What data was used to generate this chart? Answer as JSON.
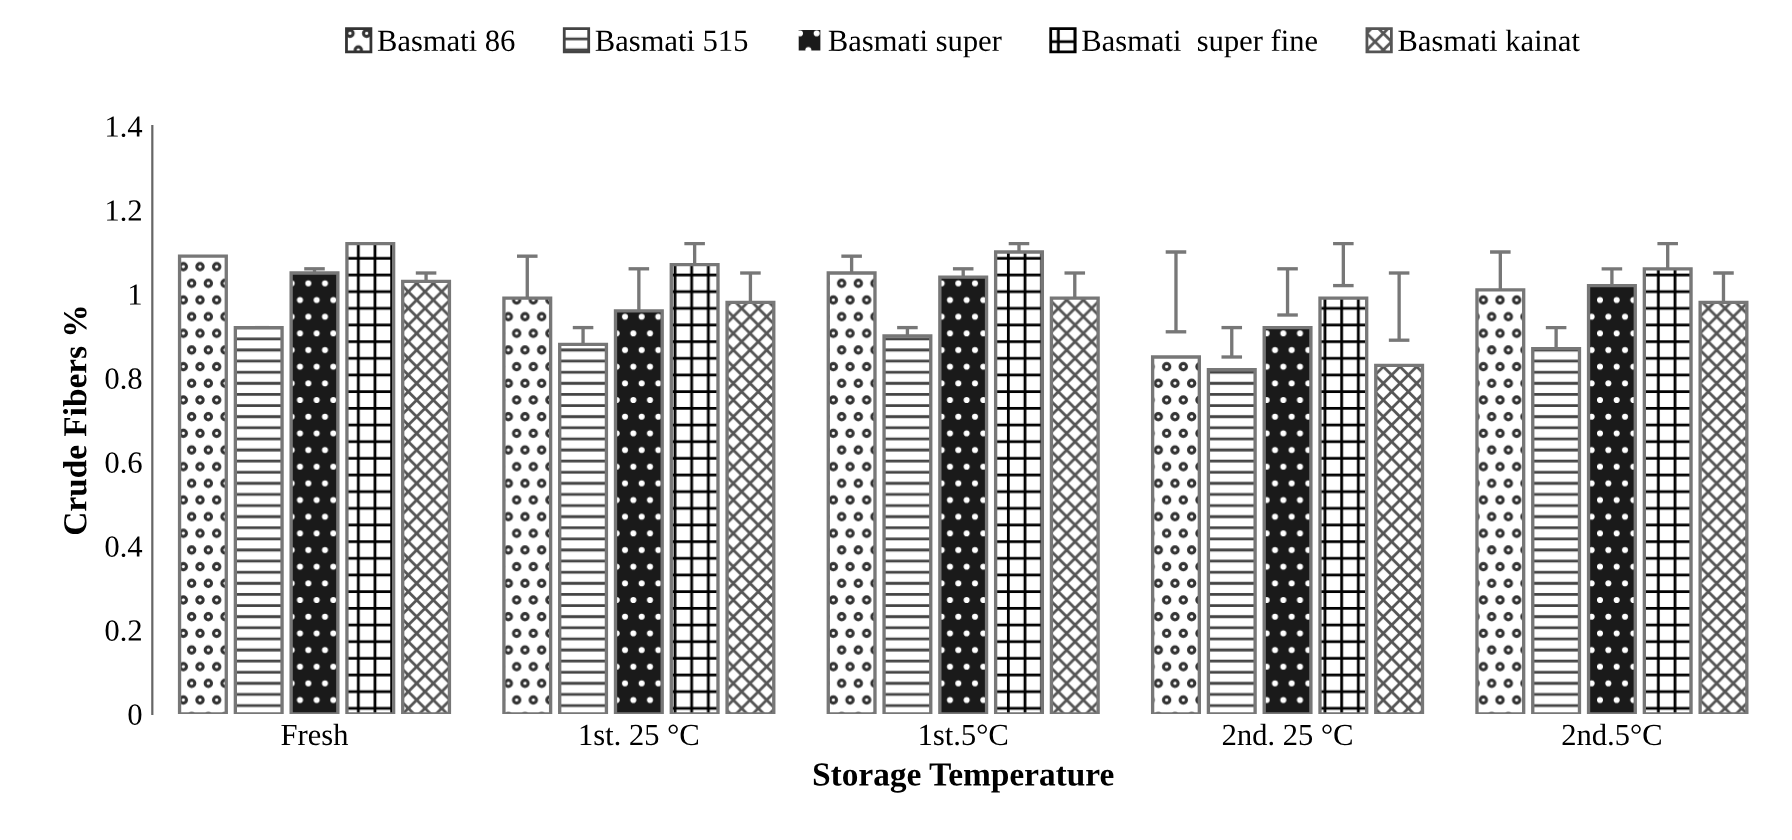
{
  "chart_data": {
    "type": "bar",
    "xlabel": "Storage Temperature",
    "ylabel": "Crude Fibers %",
    "categories": [
      "Fresh",
      "1st. 25 °C",
      "1st.5°C",
      "2nd. 25 °C",
      "2nd.5°C"
    ],
    "series": [
      {
        "name": "Basmati 86",
        "color": "#333333",
        "values": [
          1.09,
          0.99,
          1.05,
          0.85,
          1.01
        ],
        "errors": [
          null,
          [
            0.89,
            1.09
          ],
          [
            1.01,
            1.09
          ],
          [
            0.91,
            1.1
          ],
          [
            0.93,
            1.1
          ]
        ]
      },
      {
        "name": "Basmati 515",
        "color": "#444444",
        "values": [
          0.92,
          0.88,
          0.9,
          0.82,
          0.87
        ],
        "errors": [
          [
            0.85,
            0.92
          ],
          [
            0.85,
            0.92
          ],
          [
            0.85,
            0.92
          ],
          [
            0.85,
            0.92
          ],
          [
            0.85,
            0.92
          ]
        ]
      },
      {
        "name": "Basmati super",
        "color": "#1a1a1a",
        "values": [
          1.05,
          0.96,
          1.04,
          0.92,
          1.02
        ],
        "errors": [
          [
            1.04,
            1.06
          ],
          [
            0.86,
            1.06
          ],
          [
            1.03,
            1.06
          ],
          [
            0.95,
            1.06
          ],
          [
            0.98,
            1.06
          ]
        ]
      },
      {
        "name": "Basmati  super fine",
        "color": "#000000",
        "values": [
          1.12,
          1.07,
          1.1,
          0.99,
          1.06
        ],
        "errors": [
          null,
          [
            1.02,
            1.12
          ],
          [
            1.08,
            1.12
          ],
          [
            1.02,
            1.12
          ],
          [
            1.0,
            1.12
          ]
        ]
      },
      {
        "name": "Basmati kainat",
        "color": "#555555",
        "values": [
          1.03,
          0.98,
          0.99,
          0.83,
          0.98
        ],
        "errors": [
          [
            0.89,
            1.05
          ],
          [
            0.89,
            1.05
          ],
          [
            0.89,
            1.05
          ],
          [
            0.89,
            1.05
          ],
          [
            0.89,
            1.05
          ]
        ]
      }
    ],
    "ylim": [
      0,
      1.4
    ],
    "yticks": [
      0,
      0.2,
      0.4,
      0.6,
      0.8,
      1,
      1.2,
      1.4
    ],
    "grid": false,
    "legend": "top"
  }
}
